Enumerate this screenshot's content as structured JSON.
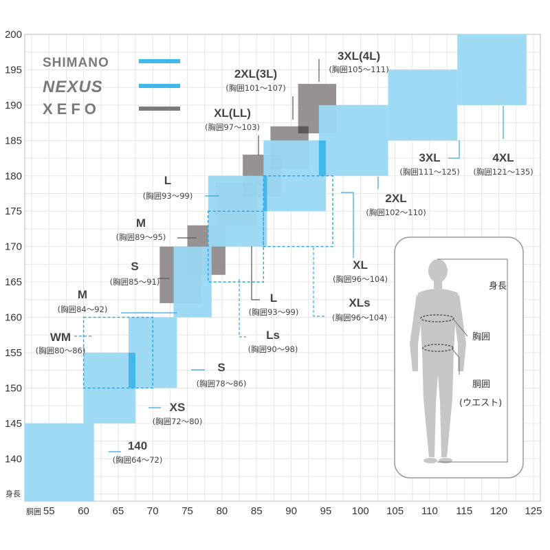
{
  "chart_data": {
    "type": "size-chart",
    "x_axis": {
      "name": "胴囲",
      "ticks": [
        55,
        60,
        65,
        70,
        75,
        80,
        85,
        90,
        95,
        100,
        105,
        110,
        115,
        120,
        125
      ],
      "range": [
        51.5,
        126
      ]
    },
    "y_axis": {
      "name": "身長",
      "ticks": [
        140,
        145,
        150,
        155,
        160,
        165,
        170,
        175,
        180,
        185,
        190,
        195,
        200
      ],
      "range": [
        134,
        200
      ]
    },
    "grid": true,
    "legend": [
      {
        "name": "SHIMANO",
        "color": "#41b8ea",
        "style": "line"
      },
      {
        "name": "NEXUS",
        "color": "#41b8ea",
        "style": "line"
      },
      {
        "name": "XEFO",
        "color": "#7b7b7b",
        "style": "line"
      }
    ],
    "colors": {
      "shimano": "#9ad8f4",
      "overlap": "#42b7ea",
      "xefo": "#8e8989",
      "xefo_dark": "#5d5757",
      "dashed": "#2ea6e4",
      "grid": "#e6e6e6"
    },
    "series": [
      {
        "name": "SHIMANO",
        "style": "filled",
        "sizes": [
          {
            "size": "140",
            "chest": "(胸囲64〜72)",
            "waist": [
              51.5,
              61.5
            ],
            "height": [
              134,
              145
            ]
          },
          {
            "size": "XS",
            "chest": "(胸囲72〜80)",
            "waist": [
              60,
              67.5
            ],
            "height": [
              145,
              155
            ]
          },
          {
            "size": "S",
            "chest": "(胸囲78〜86)",
            "waist": [
              66.5,
              73.5
            ],
            "height": [
              150,
              160
            ]
          },
          {
            "size": "M",
            "chest": "(胸囲84〜92)",
            "waist": [
              73,
              78.5
            ],
            "height": [
              160,
              170
            ]
          },
          {
            "size": "L",
            "chest": "(胸囲93〜99)",
            "waist": [
              78,
              86.5
            ],
            "height": [
              170,
              180
            ]
          },
          {
            "size": "XL",
            "chest": "(胸囲96〜104)",
            "waist": [
              86,
              95
            ],
            "height": [
              175,
              185
            ]
          },
          {
            "size": "2XL",
            "chest": "(胸囲102〜110)",
            "waist": [
              94,
              104
            ],
            "height": [
              180,
              190
            ]
          },
          {
            "size": "3XL",
            "chest": "(胸囲111〜125)",
            "waist": [
              104,
              114
            ],
            "height": [
              185,
              195
            ]
          },
          {
            "size": "4XL",
            "chest": "(胸囲121〜135)",
            "waist": [
              114,
              124
            ],
            "height": [
              190,
              200
            ]
          }
        ]
      },
      {
        "name": "NEXUS",
        "style": "dashed",
        "sizes": [
          {
            "size": "WM",
            "chest": "(胸囲80〜86)",
            "waist": [
              60,
              70
            ],
            "height": [
              150,
              160
            ]
          },
          {
            "size": "Ls",
            "chest": "(胸囲90〜98)",
            "waist": [
              78,
              86
            ],
            "height": [
              165,
              175
            ]
          },
          {
            "size": "XLs",
            "chest": "(胸囲96〜104)",
            "waist": [
              86,
              96
            ],
            "height": [
              170,
              180
            ]
          }
        ]
      },
      {
        "name": "XEFO",
        "style": "filled",
        "sizes": [
          {
            "size": "S",
            "chest": "(胸囲85〜91)",
            "waist": [
              71,
              77
            ],
            "height": [
              162,
              170
            ]
          },
          {
            "size": "M",
            "chest": "(胸囲89〜95)",
            "waist": [
              75,
              80.5
            ],
            "height": [
              166,
              173
            ]
          },
          {
            "size": "L",
            "chest": "(胸囲93〜99)",
            "waist": [
              79,
              85
            ],
            "height": [
              173,
              179
            ]
          },
          {
            "size": "XL(LL)",
            "chest": "(胸囲97〜103)",
            "waist": [
              83,
              88.5
            ],
            "height": [
              177,
              183
            ]
          },
          {
            "size": "2XL(3L)",
            "chest": "(胸囲101〜107)",
            "waist": [
              87,
              92.5
            ],
            "height": [
              181,
              187
            ]
          },
          {
            "size": "3XL(4L)",
            "chest": "(胸囲105〜111)",
            "waist": [
              91,
              96.5
            ],
            "height": [
              186,
              193
            ]
          }
        ]
      }
    ]
  },
  "figure_labels": {
    "height": "身長",
    "chest": "胸囲",
    "waist": "胴囲",
    "waist_sub": "(ウエスト)"
  }
}
